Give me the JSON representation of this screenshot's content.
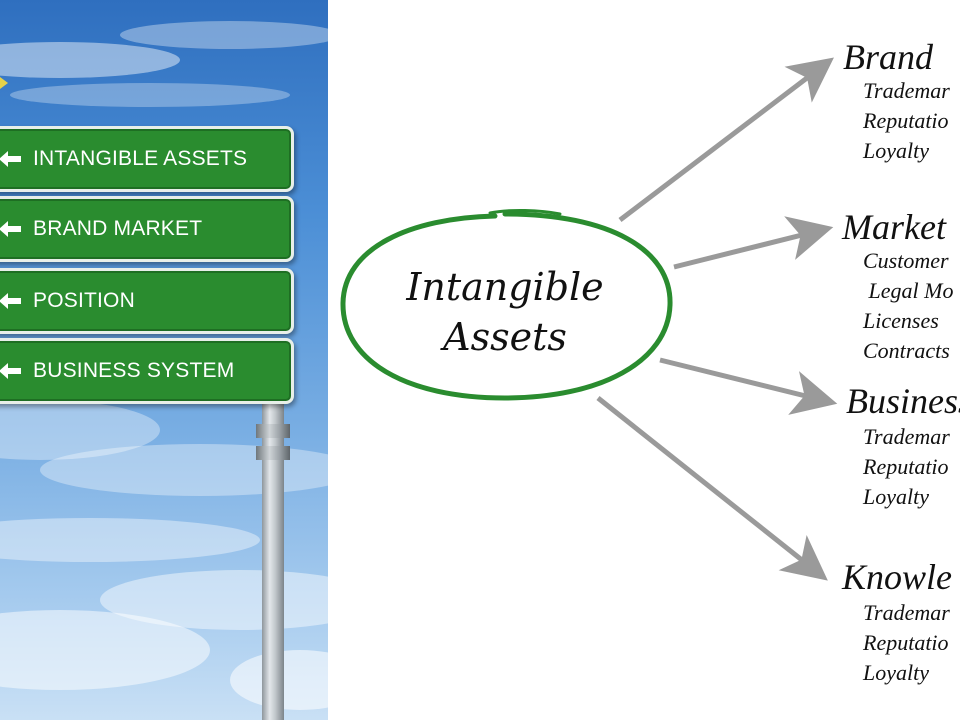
{
  "signs": [
    {
      "label": "INTANGIBLE ASSETS"
    },
    {
      "label": "BRAND MARKET"
    },
    {
      "label": "POSITION"
    },
    {
      "label": "BUSINESS SYSTEM"
    }
  ],
  "center": {
    "line1": "Intangible",
    "line2": "Assets",
    "ring_color": "#2a8c2f"
  },
  "arrow_color": "#9a9a9a",
  "categories": [
    {
      "title": "Brand",
      "items": [
        "Trademar",
        "Reputatio",
        "Loyalty"
      ]
    },
    {
      "title": "Market",
      "items": [
        "Customer",
        " Legal Mo",
        "Licenses",
        "Contracts"
      ]
    },
    {
      "title": "Business",
      "items": [
        "Trademar",
        "Reputatio",
        "Loyalty"
      ]
    },
    {
      "title": "Knowle",
      "items": [
        "Trademar",
        "Reputatio",
        "Loyalty"
      ]
    }
  ]
}
